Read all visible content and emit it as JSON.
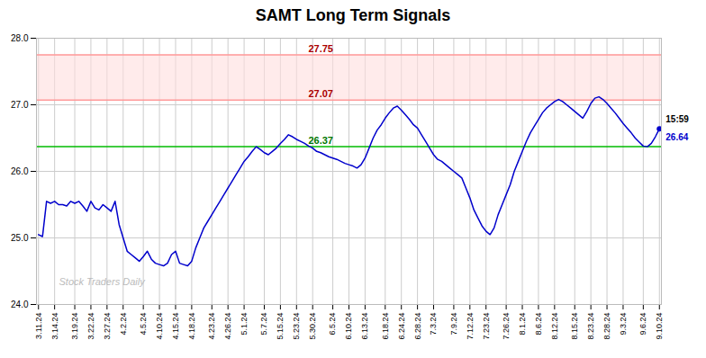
{
  "chart_data": {
    "type": "line",
    "title": "SAMT Long Term Signals",
    "categories": [
      "3.11.24",
      null,
      null,
      null,
      "3.14.24",
      null,
      null,
      null,
      null,
      "3.19.24",
      null,
      null,
      null,
      "3.22.24",
      null,
      null,
      null,
      "3.27.24",
      null,
      null,
      null,
      "4.2.24",
      null,
      null,
      null,
      null,
      "4.5.24",
      null,
      null,
      null,
      "4.10.24",
      null,
      null,
      null,
      "4.15.24",
      null,
      null,
      null,
      "4.18.24",
      null,
      null,
      null,
      null,
      "4.23.24",
      null,
      null,
      null,
      "4.26.24",
      null,
      null,
      null,
      "5.1.24",
      null,
      null,
      null,
      null,
      "5.7.24",
      null,
      null,
      null,
      "5.15.24",
      null,
      null,
      null,
      "5.23.24",
      null,
      null,
      null,
      "5.30.24",
      null,
      null,
      null,
      null,
      "6.5.24",
      null,
      null,
      null,
      "6.10.24",
      null,
      null,
      null,
      "6.13.24",
      null,
      null,
      null,
      null,
      "6.18.24",
      null,
      null,
      null,
      "6.24.24",
      null,
      null,
      null,
      "6.28.24",
      null,
      null,
      null,
      "7.3.24",
      null,
      null,
      null,
      null,
      "7.9.24",
      null,
      null,
      null,
      "7.12.24",
      null,
      null,
      null,
      "7.23.24",
      null,
      null,
      null,
      null,
      "7.26.24",
      null,
      null,
      null,
      "8.1.24",
      null,
      null,
      null,
      "8.6.24",
      null,
      null,
      null,
      "8.12.24",
      null,
      null,
      null,
      null,
      "8.15.24",
      null,
      null,
      null,
      "8.23.24",
      null,
      null,
      null,
      "8.28.24",
      null,
      null,
      null,
      "9.3.24",
      null,
      null,
      null,
      null,
      "9.6.24",
      null,
      null,
      null,
      "9.10.24"
    ],
    "values": [
      25.05,
      25.02,
      25.55,
      25.52,
      25.55,
      25.5,
      25.5,
      25.48,
      25.55,
      25.52,
      25.55,
      25.48,
      25.4,
      25.55,
      25.45,
      25.42,
      25.5,
      25.45,
      25.4,
      25.55,
      25.2,
      25.0,
      24.8,
      24.75,
      24.7,
      24.65,
      24.72,
      24.8,
      24.68,
      24.62,
      24.6,
      24.58,
      24.62,
      24.75,
      24.8,
      24.62,
      24.6,
      24.58,
      24.65,
      24.85,
      25.0,
      25.15,
      25.25,
      25.35,
      25.45,
      25.55,
      25.65,
      25.75,
      25.85,
      25.95,
      26.05,
      26.15,
      26.22,
      26.3,
      26.37,
      26.33,
      26.28,
      26.25,
      26.3,
      26.35,
      26.42,
      26.48,
      26.55,
      26.52,
      26.48,
      26.45,
      26.42,
      26.38,
      26.35,
      26.3,
      26.28,
      26.25,
      26.22,
      26.2,
      26.18,
      26.15,
      26.12,
      26.1,
      26.08,
      26.05,
      26.1,
      26.2,
      26.35,
      26.5,
      26.62,
      26.7,
      26.8,
      26.88,
      26.95,
      26.98,
      26.92,
      26.85,
      26.78,
      26.7,
      26.65,
      26.55,
      26.45,
      26.35,
      26.25,
      26.18,
      26.15,
      26.1,
      26.05,
      26.0,
      25.95,
      25.9,
      25.75,
      25.6,
      25.42,
      25.3,
      25.18,
      25.1,
      25.05,
      25.15,
      25.35,
      25.5,
      25.65,
      25.8,
      26.0,
      26.15,
      26.3,
      26.45,
      26.58,
      26.68,
      26.78,
      26.88,
      26.95,
      27.0,
      27.05,
      27.08,
      27.05,
      27.0,
      26.95,
      26.9,
      26.85,
      26.8,
      26.9,
      27.02,
      27.1,
      27.12,
      27.08,
      27.02,
      26.95,
      26.88,
      26.8,
      26.72,
      26.65,
      26.58,
      26.5,
      26.44,
      26.38,
      26.37,
      26.42,
      26.52,
      26.64
    ],
    "color": "#0000cc",
    "ylim": [
      24,
      28
    ],
    "yticks": [
      24,
      25,
      26,
      27,
      28
    ],
    "grid": true,
    "band": {
      "y1": 27.07,
      "y2": 27.75,
      "color": "#ffdddd"
    },
    "reference_lines": [
      {
        "y": 27.75,
        "label": "27.75",
        "color": "#ff9999",
        "label_color": "#aa0000"
      },
      {
        "y": 27.07,
        "label": "27.07",
        "color": "#ff9999",
        "label_color": "#aa0000"
      },
      {
        "y": 26.37,
        "label": "26.37",
        "color": "#00bb00",
        "label_color": "#007700"
      }
    ],
    "annotations": [
      {
        "text": "15:59",
        "color": "#000000"
      },
      {
        "text": "26.64",
        "color": "#0000cc"
      }
    ],
    "watermark": {
      "text": "Stock Traders Daily",
      "color": "#bbbbbb"
    }
  }
}
